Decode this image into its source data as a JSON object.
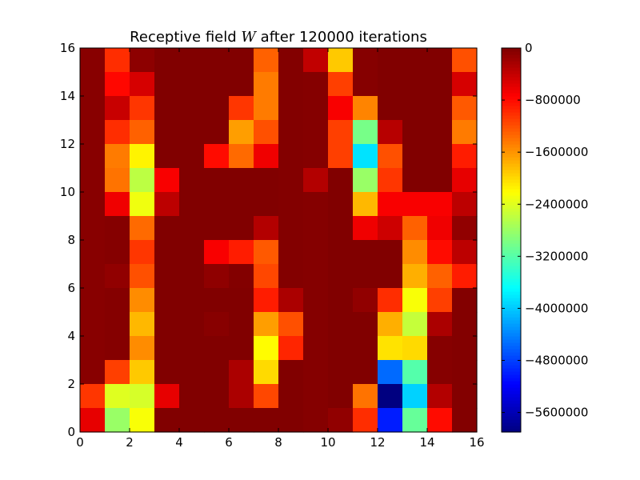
{
  "chart_data": {
    "type": "heatmap",
    "title_prefix": "Receptive field ",
    "title_var": "W",
    "title_suffix": " after 120000 iterations",
    "xlim": [
      0,
      16
    ],
    "ylim": [
      0,
      16
    ],
    "xticks": [
      "0",
      "2",
      "4",
      "6",
      "8",
      "10",
      "12",
      "14",
      "16"
    ],
    "yticks": [
      "0",
      "2",
      "4",
      "6",
      "8",
      "10",
      "12",
      "14",
      "16"
    ],
    "colormap": "jet",
    "vmin": -5900000,
    "vmax": 0,
    "colorbar_ticks": [
      {
        "value": 0,
        "label": "0"
      },
      {
        "value": -800000,
        "label": "−800000"
      },
      {
        "value": -1600000,
        "label": "−1600000"
      },
      {
        "value": -2400000,
        "label": "−2400000"
      },
      {
        "value": -3200000,
        "label": "−3200000"
      },
      {
        "value": -4000000,
        "label": "−4000000"
      },
      {
        "value": -4800000,
        "label": "−4800000"
      },
      {
        "value": -5600000,
        "label": "−5600000"
      }
    ],
    "rows_top_to_bottom": [
      [
        -50000,
        -1000000,
        -80000,
        -10000,
        -10000,
        -10000,
        -10000,
        -1300000,
        -20000,
        -380000,
        -1900000,
        -40000,
        -10000,
        -10000,
        -10000,
        -1200000
      ],
      [
        -50000,
        -780000,
        -500000,
        -10000,
        -10000,
        -10000,
        -10000,
        -1450000,
        -20000,
        -30000,
        -1100000,
        -40000,
        -10000,
        -10000,
        -10000,
        -500000
      ],
      [
        -50000,
        -420000,
        -1050000,
        -10000,
        -10000,
        -10000,
        -1050000,
        -1450000,
        -20000,
        -30000,
        -700000,
        -1500000,
        -10000,
        -10000,
        -10000,
        -1250000
      ],
      [
        -50000,
        -1000000,
        -1300000,
        -10000,
        -10000,
        -10000,
        -1650000,
        -1200000,
        -20000,
        -30000,
        -1100000,
        -3000000,
        -320000,
        -10000,
        -10000,
        -1450000
      ],
      [
        -50000,
        -1450000,
        -2150000,
        -10000,
        -10000,
        -800000,
        -1350000,
        -650000,
        -20000,
        -30000,
        -1100000,
        -3850000,
        -1200000,
        -10000,
        -10000,
        -900000
      ],
      [
        -50000,
        -1400000,
        -2600000,
        -700000,
        -10000,
        -10000,
        -10000,
        -10000,
        -20000,
        -300000,
        -10000,
        -2800000,
        -1050000,
        -10000,
        -10000,
        -600000
      ],
      [
        -50000,
        -650000,
        -2300000,
        -350000,
        -10000,
        -10000,
        -10000,
        -10000,
        -20000,
        -30000,
        -10000,
        -1800000,
        -700000,
        -700000,
        -700000,
        -350000
      ],
      [
        -50000,
        -30000,
        -1350000,
        -10000,
        -10000,
        -10000,
        -10000,
        -300000,
        -20000,
        -30000,
        -10000,
        -650000,
        -450000,
        -1300000,
        -650000,
        -100000
      ],
      [
        -50000,
        -30000,
        -1050000,
        -10000,
        -10000,
        -700000,
        -900000,
        -1250000,
        -20000,
        -30000,
        -10000,
        -10000,
        -10000,
        -1550000,
        -800000,
        -350000
      ],
      [
        -50000,
        -100000,
        -1200000,
        -10000,
        -10000,
        -90000,
        -20000,
        -1150000,
        -20000,
        -30000,
        -10000,
        -10000,
        -10000,
        -1750000,
        -1300000,
        -900000
      ],
      [
        -50000,
        -30000,
        -1550000,
        -10000,
        -10000,
        -10000,
        -10000,
        -900000,
        -250000,
        -30000,
        -10000,
        -100000,
        -1000000,
        -2250000,
        -1100000,
        -20000
      ],
      [
        -50000,
        -30000,
        -1800000,
        -10000,
        -10000,
        -50000,
        -10000,
        -1650000,
        -1200000,
        -30000,
        -10000,
        -10000,
        -1750000,
        -2550000,
        -250000,
        -20000
      ],
      [
        -50000,
        -30000,
        -1550000,
        -10000,
        -10000,
        -10000,
        -10000,
        -2200000,
        -950000,
        -30000,
        -10000,
        -10000,
        -2050000,
        -2000000,
        -40000,
        -20000
      ],
      [
        -50000,
        -1100000,
        -1900000,
        -10000,
        -10000,
        -10000,
        -250000,
        -2000000,
        -10000,
        -30000,
        -10000,
        -10000,
        -4550000,
        -3200000,
        -40000,
        -20000
      ],
      [
        -1050000,
        -2400000,
        -2450000,
        -600000,
        -10000,
        -10000,
        -250000,
        -1150000,
        -10000,
        -30000,
        -10000,
        -1400000,
        -5900000,
        -3950000,
        -300000,
        -20000
      ],
      [
        -600000,
        -2800000,
        -2250000,
        -10000,
        -10000,
        -10000,
        -10000,
        -10000,
        -10000,
        -30000,
        -100000,
        -1000000,
        -5000000,
        -3100000,
        -800000,
        -20000
      ]
    ]
  }
}
